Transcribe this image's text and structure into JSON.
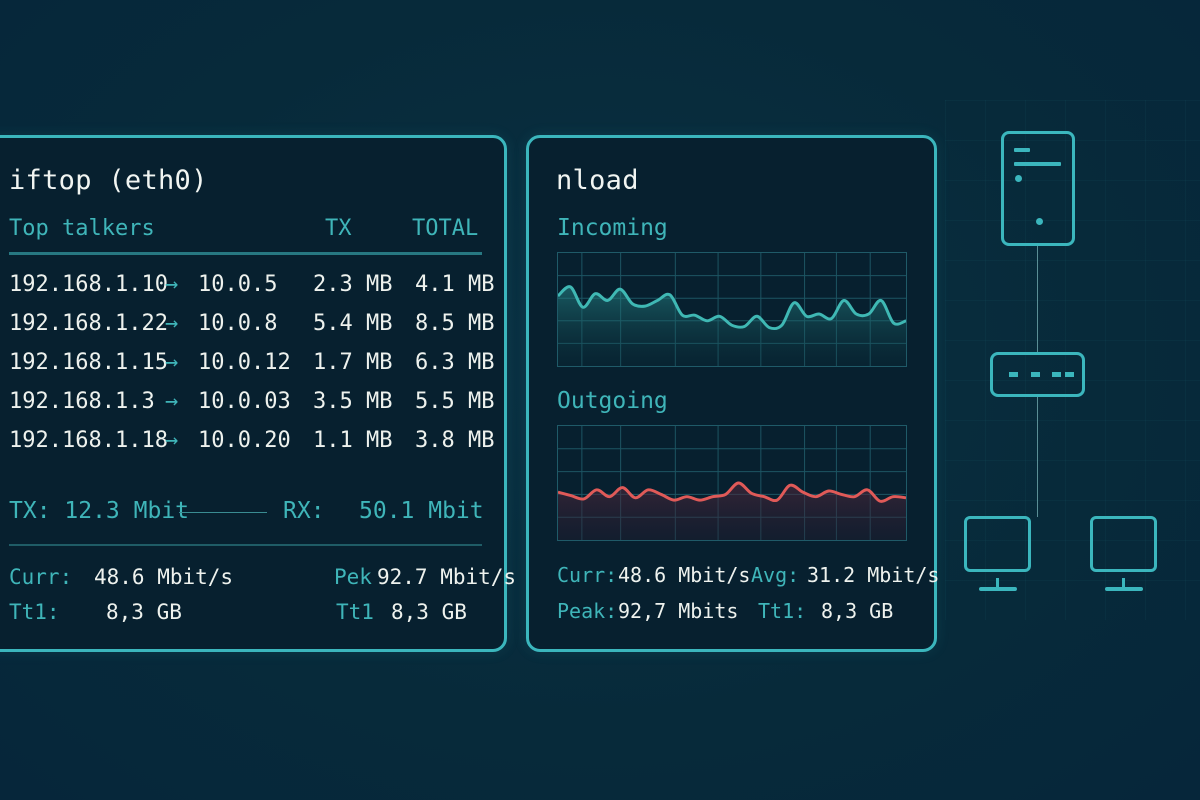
{
  "iftop": {
    "title": "iftop (eth0)",
    "headers": {
      "talkers": "Top talkers",
      "tx": "TX",
      "total": "TOTAL"
    },
    "rows": [
      {
        "src": "192.168.1.10",
        "arrow": "→",
        "dst": "10.0.5",
        "tx": "2.3 MB",
        "total": "4.1 MB"
      },
      {
        "src": "192.168.1.22",
        "arrow": "→",
        "dst": "10.0.8",
        "tx": "5.4 MB",
        "total": "8.5 MB"
      },
      {
        "src": "192.168.1.15",
        "arrow": "→",
        "dst": "10.0.12",
        "tx": "1.7 MB",
        "total": "6.3 MB"
      },
      {
        "src": "192.168.1.3",
        "arrow": "→",
        "dst": "10.0.03",
        "tx": "3.5 MB",
        "total": "5.5 MB"
      },
      {
        "src": "192.168.1.18",
        "arrow": "→",
        "dst": "10.0.20",
        "tx": "1.1 MB",
        "total": "3.8 MB"
      }
    ],
    "rates": {
      "tx": "TX: 12.3 Mbit",
      "rx_label": "RX:",
      "rx_value": "50.1 Mbit"
    },
    "stats": {
      "curr_label": "Curr:",
      "curr_value": "48.6 Mbit/s",
      "tt1_label": "Tt1:",
      "tt1_value": "8,3 GB",
      "peak_label": "Pek",
      "peak_value": "92.7 Mbit/s",
      "tt1b_label": "Tt1",
      "tt1b_value": "8,3 GB"
    }
  },
  "nload": {
    "title": "nload",
    "incoming": {
      "label": "Incoming",
      "color": "#3fb8b4",
      "values": [
        62,
        70,
        52,
        64,
        58,
        68,
        55,
        53,
        58,
        63,
        45,
        45,
        40,
        44,
        36,
        35,
        44,
        34,
        36,
        56,
        44,
        46,
        42,
        58,
        46,
        46,
        58,
        38,
        40
      ]
    },
    "outgoing": {
      "label": "Outgoing",
      "color": "#e05a58",
      "values": [
        42,
        39,
        36,
        44,
        38,
        46,
        37,
        44,
        40,
        35,
        38,
        35,
        38,
        40,
        50,
        41,
        38,
        35,
        48,
        42,
        38,
        43,
        40,
        38,
        44,
        34,
        38,
        37
      ]
    },
    "stats": {
      "curr_label": "Curr:",
      "curr_value": "48.6 Mbit/s",
      "avg_label": "Avg:",
      "avg_value": "31.2 Mbit/s",
      "peak_label": "Peak:",
      "peak_value": "92,7 Mbits",
      "tt1_label": "Tt1:",
      "tt1_value": "8,3 GB"
    }
  },
  "topology": {
    "nodes": [
      "server",
      "switch",
      "workstation",
      "workstation"
    ],
    "accent": "#3bb6bd"
  }
}
